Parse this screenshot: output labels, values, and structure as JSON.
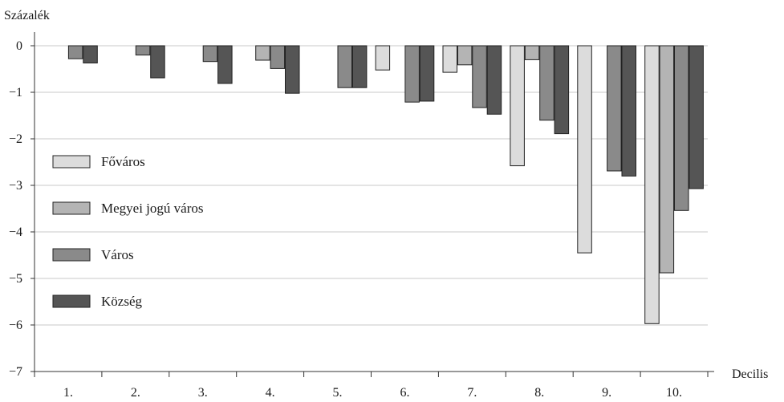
{
  "chart_data": {
    "type": "bar",
    "ylabel": "Százalék",
    "xlabel": "Decilis",
    "ylim": [
      -7,
      0
    ],
    "yticks": [
      0,
      -1,
      -2,
      -3,
      -4,
      -5,
      -6,
      -7
    ],
    "categories": [
      "1.",
      "2.",
      "3.",
      "4.",
      "5.",
      "6.",
      "7.",
      "8.",
      "9.",
      "10."
    ],
    "grid": true,
    "legend_position": "left",
    "series": [
      {
        "name": "Főváros",
        "color": "#dcdcdc",
        "values": [
          null,
          null,
          null,
          null,
          null,
          -0.52,
          -0.57,
          -2.58,
          -4.45,
          -5.97
        ]
      },
      {
        "name": "Megyei jogú város",
        "color": "#b4b4b4",
        "values": [
          null,
          null,
          null,
          -0.31,
          null,
          null,
          -0.41,
          -0.3,
          null,
          -4.88
        ]
      },
      {
        "name": "Város",
        "color": "#8a8a8a",
        "values": [
          -0.28,
          -0.2,
          -0.34,
          -0.49,
          -0.9,
          -1.21,
          -1.33,
          -1.6,
          -2.69,
          -3.54
        ]
      },
      {
        "name": "Község",
        "color": "#555555",
        "values": [
          -0.37,
          -0.69,
          -0.81,
          -1.02,
          -0.9,
          -1.19,
          -1.47,
          -1.89,
          -2.8,
          -3.07
        ]
      }
    ]
  }
}
